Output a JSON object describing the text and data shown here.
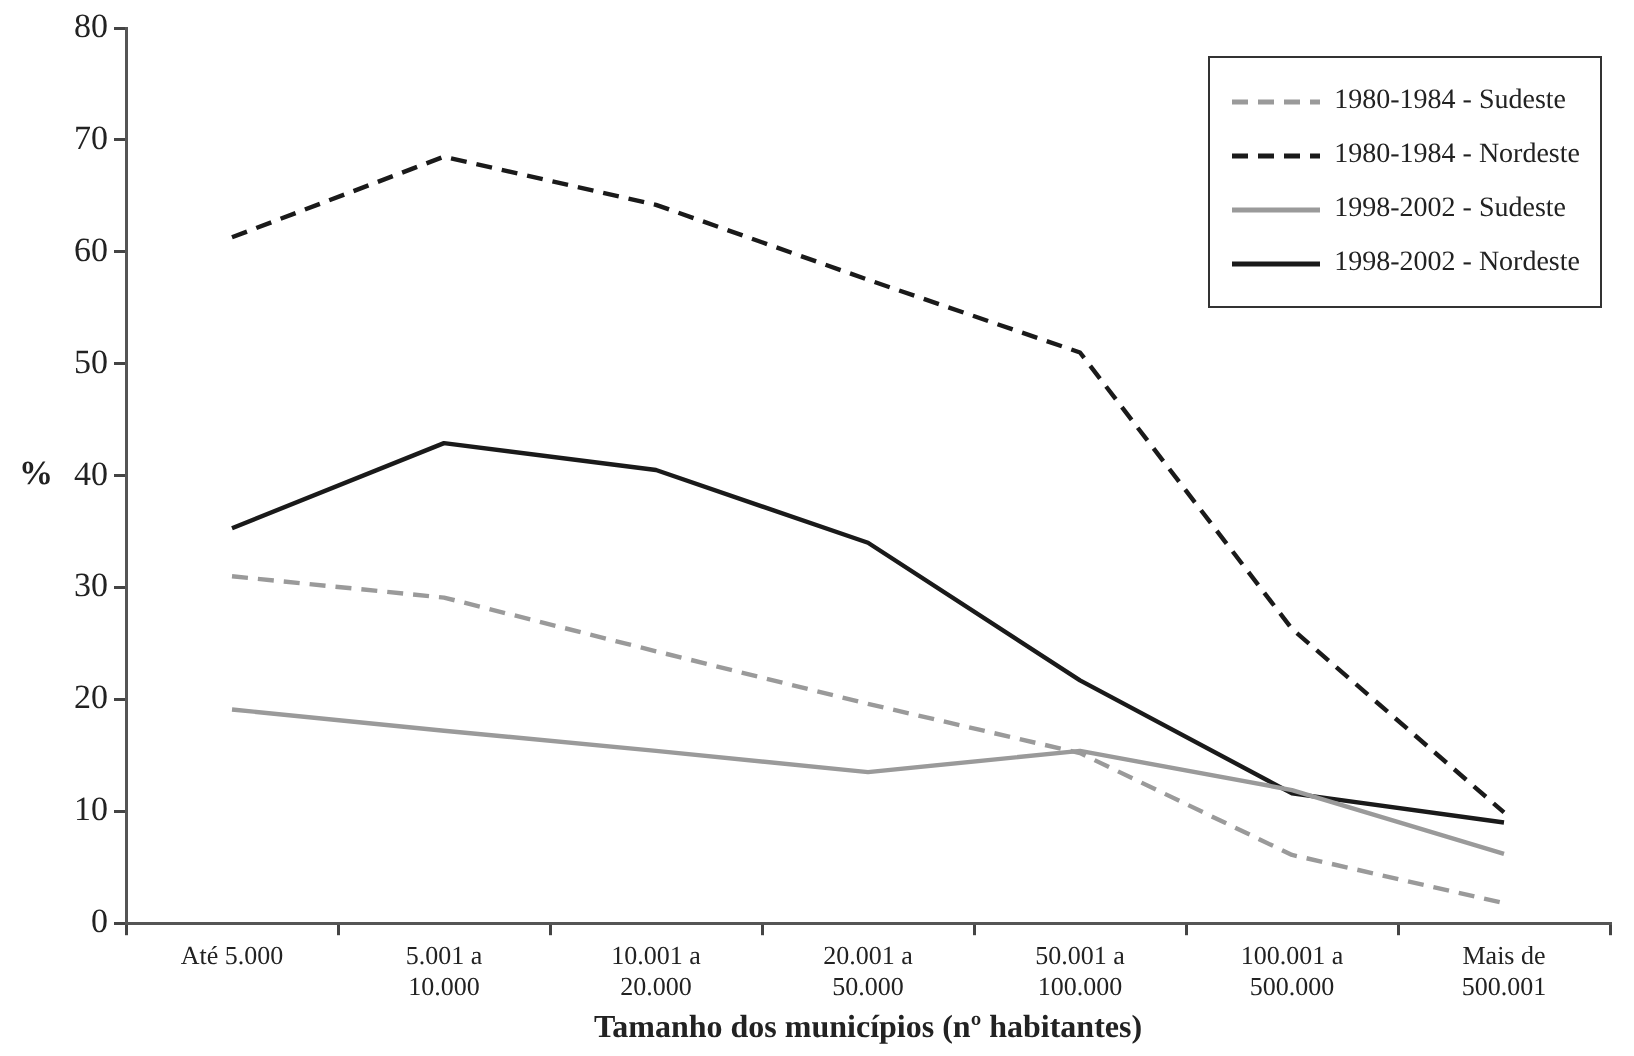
{
  "chart_data": {
    "type": "line",
    "xlabel": "Tamanho dos municípios (nº habitantes)",
    "ylabel": "%",
    "categories": [
      "Até 5.000",
      "5.001 a 10.000",
      "10.001 a 20.000",
      "20.001 a 50.000",
      "50.001 a 100.000",
      "100.001 a 500.000",
      "Mais de 500.001"
    ],
    "series": [
      {
        "name": "1980-1984 - Sudeste",
        "color": "#9a9a9a",
        "line_style": "dashed",
        "values": [
          31.0,
          29.1,
          24.3,
          19.6,
          15.2,
          6.1,
          1.8
        ]
      },
      {
        "name": "1980-1984 - Nordeste",
        "color": "#1a1a1a",
        "line_style": "dashed",
        "values": [
          61.3,
          68.5,
          64.2,
          57.5,
          51.0,
          26.3,
          9.9
        ]
      },
      {
        "name": "1998-2002 - Sudeste",
        "color": "#9a9a9a",
        "line_style": "solid",
        "values": [
          19.1,
          17.2,
          15.4,
          13.5,
          15.4,
          11.9,
          6.2
        ]
      },
      {
        "name": "1998-2002 - Nordeste",
        "color": "#1a1a1a",
        "line_style": "solid",
        "values": [
          35.3,
          42.9,
          40.5,
          34.0,
          21.7,
          11.6,
          9.0
        ]
      }
    ],
    "ylim": [
      0,
      80
    ],
    "yticks": [
      0,
      10,
      20,
      30,
      40,
      50,
      60,
      70,
      80
    ],
    "grid": false,
    "legend": "top right",
    "marker": "none"
  }
}
